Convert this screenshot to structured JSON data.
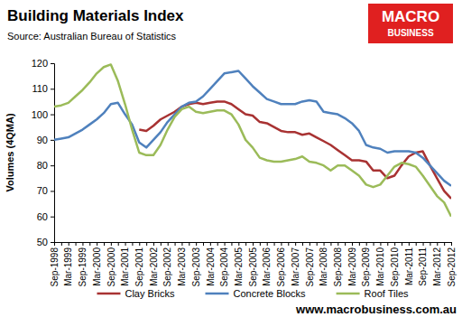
{
  "chart_data": {
    "type": "line",
    "title": "Building Materials Index",
    "subtitle": "Source: Australian Bureau of Statistics",
    "ylabel": "Volumes (4QMA)",
    "annotations": [
      "MACRO",
      "BUSINESS",
      "www.macrobusiness.com.au"
    ],
    "categories": [
      "Sep-1998",
      null,
      "Mar-1999",
      null,
      "Sep-1999",
      null,
      "Mar-2000",
      null,
      "Sep-2000",
      null,
      "Mar-2001",
      null,
      "Sep-2001",
      null,
      "Mar-2002",
      null,
      "Sep-2002",
      null,
      "Mar-2003",
      null,
      "Sep-2003",
      null,
      "Mar-2004",
      null,
      "Sep-2004",
      null,
      "Mar-2005",
      null,
      "Sep-2005",
      null,
      "Mar-2006",
      null,
      "Sep-2006",
      null,
      "Mar-2007",
      null,
      "Sep-2007",
      null,
      "Mar-2008",
      null,
      "Sep-2008",
      null,
      "Mar-2009",
      null,
      "Sep-2009",
      null,
      "Mar-2010",
      null,
      "Sep-2010",
      null,
      "Mar-2011",
      null,
      "Sep-2011",
      null,
      "Mar-2012",
      null,
      "Sep-2012"
    ],
    "series": [
      {
        "name": "Clay Bricks",
        "color": "#a83232",
        "values": [
          null,
          null,
          null,
          null,
          null,
          null,
          null,
          null,
          null,
          null,
          null,
          null,
          94,
          93.5,
          95.5,
          98,
          99.5,
          101,
          103,
          104,
          104.5,
          104,
          104.5,
          105,
          105,
          104,
          102,
          100,
          99.5,
          97,
          96.5,
          95,
          93.5,
          93,
          93,
          92,
          92.5,
          91,
          89.5,
          88,
          86,
          84,
          82,
          82,
          81.5,
          78,
          78,
          75,
          76,
          80,
          83.5,
          85,
          85.5,
          80,
          75,
          70,
          67
        ]
      },
      {
        "name": "Concrete Blocks",
        "color": "#4f81bd",
        "values": [
          90,
          90.5,
          91,
          92.5,
          94,
          96,
          98,
          100.5,
          104,
          104.5,
          100,
          96,
          89,
          87,
          90,
          93,
          97,
          100,
          103,
          104.5,
          105,
          107,
          110,
          113,
          116,
          116.5,
          117,
          114,
          111,
          108.5,
          106,
          105,
          104,
          104,
          104,
          105,
          105.5,
          105,
          101,
          100.5,
          100,
          98.5,
          96.5,
          93.5,
          88,
          87,
          86.5,
          85,
          85.5,
          85.5,
          85.5,
          85,
          83,
          80,
          77,
          74,
          72
        ]
      },
      {
        "name": "Roof Tiles",
        "color": "#9bbb59",
        "values": [
          103,
          103.5,
          104.5,
          107,
          109.5,
          112.5,
          116,
          118.5,
          119.5,
          113,
          104,
          94,
          85,
          84,
          84,
          88,
          94,
          99,
          102,
          103,
          101,
          100.5,
          101,
          101.5,
          101.5,
          100,
          96,
          90,
          87,
          83,
          82,
          81.5,
          81.5,
          82,
          82.5,
          83.5,
          81.5,
          81,
          80,
          78,
          80,
          80,
          78,
          76,
          72.5,
          71.5,
          72.5,
          76,
          79.5,
          81,
          80.5,
          79.5,
          76,
          72,
          68,
          65.5,
          60
        ]
      }
    ],
    "ylim": [
      50,
      120
    ],
    "yticks": [
      50,
      60,
      70,
      80,
      90,
      100,
      110,
      120
    ],
    "grid": false,
    "legend": "bottom"
  }
}
